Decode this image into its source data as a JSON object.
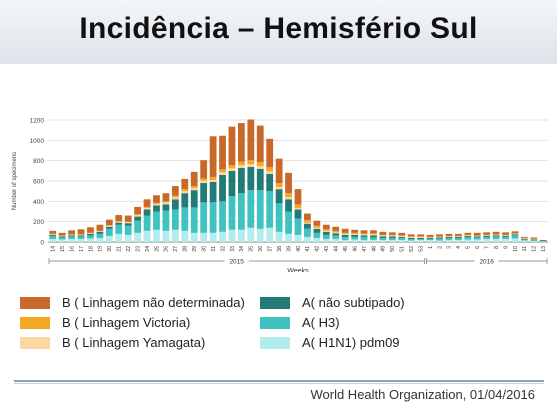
{
  "title": "Incidência – Hemisfério Sul",
  "source": "World Health Organization, 01/04/2016",
  "colors": {
    "b_undetermined": "#c8692a",
    "b_victoria": "#f5a623",
    "b_yamagata": "#fcd7a1",
    "a_not_subtyped": "#237b78",
    "a_h3": "#40c3c0",
    "a_h1n1": "#b3ecec"
  },
  "chart_data": {
    "type": "bar",
    "stacked": true,
    "ylabel": "Number of specimens",
    "xlabel": "Weeks",
    "ylim": [
      0,
      1200
    ],
    "yticks": [
      0,
      200,
      400,
      600,
      800,
      1000,
      1200
    ],
    "grid": true,
    "year_groups": [
      {
        "label": "2015",
        "from": "14",
        "to": "53"
      },
      {
        "label": "2016",
        "from": "1",
        "to": "13"
      }
    ],
    "categories": [
      "14",
      "15",
      "16",
      "17",
      "18",
      "19",
      "20",
      "21",
      "22",
      "23",
      "24",
      "25",
      "26",
      "27",
      "28",
      "29",
      "30",
      "31",
      "32",
      "33",
      "34",
      "35",
      "36",
      "37",
      "38",
      "39",
      "40",
      "41",
      "42",
      "43",
      "44",
      "45",
      "46",
      "47",
      "48",
      "49",
      "50",
      "51",
      "52",
      "53",
      "1",
      "2",
      "3",
      "4",
      "5",
      "6",
      "7",
      "8",
      "9",
      "10",
      "11",
      "12",
      "13"
    ],
    "series": [
      {
        "name": "A( H1N1) pdm09",
        "color": "#b3ecec",
        "values": [
          30,
          25,
          30,
          30,
          35,
          40,
          60,
          80,
          70,
          90,
          110,
          120,
          110,
          120,
          110,
          90,
          90,
          90,
          100,
          120,
          120,
          140,
          130,
          140,
          100,
          80,
          70,
          50,
          40,
          30,
          30,
          20,
          25,
          20,
          20,
          20,
          20,
          20,
          15,
          20,
          20,
          15,
          20,
          20,
          25,
          25,
          30,
          30,
          30,
          35,
          15,
          10,
          5
        ]
      },
      {
        "name": "A( H3)",
        "color": "#40c3c0",
        "values": [
          30,
          20,
          25,
          25,
          30,
          40,
          70,
          90,
          90,
          120,
          150,
          180,
          200,
          200,
          230,
          250,
          300,
          300,
          300,
          330,
          360,
          370,
          380,
          360,
          280,
          220,
          160,
          80,
          50,
          40,
          35,
          30,
          25,
          30,
          25,
          20,
          20,
          20,
          15,
          10,
          10,
          20,
          20,
          20,
          25,
          20,
          20,
          25,
          20,
          30,
          10,
          10,
          5
        ]
      },
      {
        "name": "A( não subtipado)",
        "color": "#237b78",
        "values": [
          10,
          10,
          10,
          10,
          15,
          20,
          20,
          20,
          25,
          40,
          60,
          60,
          60,
          100,
          140,
          170,
          190,
          200,
          260,
          250,
          250,
          230,
          210,
          170,
          140,
          120,
          90,
          50,
          40,
          30,
          20,
          20,
          20,
          15,
          20,
          15,
          15,
          10,
          10,
          10,
          10,
          10,
          10,
          10,
          10,
          10,
          10,
          10,
          10,
          10,
          5,
          5,
          5
        ]
      },
      {
        "name": "B ( Linhagem Yamagata)",
        "color": "#fcd7a1",
        "values": [
          5,
          5,
          5,
          5,
          5,
          5,
          10,
          10,
          10,
          15,
          15,
          15,
          20,
          20,
          20,
          20,
          25,
          20,
          25,
          25,
          25,
          25,
          25,
          25,
          20,
          20,
          15,
          10,
          10,
          10,
          10,
          10,
          10,
          10,
          10,
          10,
          10,
          10,
          10,
          10,
          5,
          5,
          5,
          5,
          5,
          5,
          5,
          5,
          5,
          5,
          5,
          5,
          0
        ]
      },
      {
        "name": "B ( Linhagem Victoria)",
        "color": "#f5a623",
        "values": [
          5,
          5,
          5,
          5,
          5,
          5,
          5,
          5,
          5,
          10,
          10,
          10,
          10,
          15,
          20,
          20,
          20,
          30,
          30,
          30,
          35,
          40,
          40,
          40,
          40,
          40,
          35,
          25,
          20,
          15,
          15,
          10,
          10,
          10,
          10,
          5,
          5,
          5,
          5,
          5,
          5,
          5,
          5,
          5,
          5,
          5,
          5,
          5,
          5,
          5,
          5,
          5,
          0
        ]
      },
      {
        "name": "B ( Linhagem não determinada)",
        "color": "#c8692a",
        "values": [
          30,
          25,
          40,
          50,
          55,
          60,
          55,
          60,
          60,
          70,
          75,
          75,
          80,
          95,
          100,
          140,
          180,
          400,
          330,
          380,
          380,
          400,
          360,
          280,
          240,
          200,
          150,
          65,
          50,
          45,
          40,
          40,
          30,
          30,
          30,
          30,
          25,
          25,
          20,
          20,
          20,
          20,
          20,
          20,
          20,
          25,
          25,
          25,
          25,
          20,
          10,
          10,
          5
        ]
      }
    ]
  },
  "legend": [
    {
      "name": "B ( Linhagem não determinada)",
      "color": "#c8692a"
    },
    {
      "name": "B ( Linhagem Victoria)",
      "color": "#f5a623"
    },
    {
      "name": "B ( Linhagem Yamagata)",
      "color": "#fcd7a1"
    },
    {
      "name": "A( não subtipado)",
      "color": "#237b78"
    },
    {
      "name": "A( H3)",
      "color": "#40c3c0"
    },
    {
      "name": "A( H1N1) pdm09",
      "color": "#b3ecec"
    }
  ]
}
